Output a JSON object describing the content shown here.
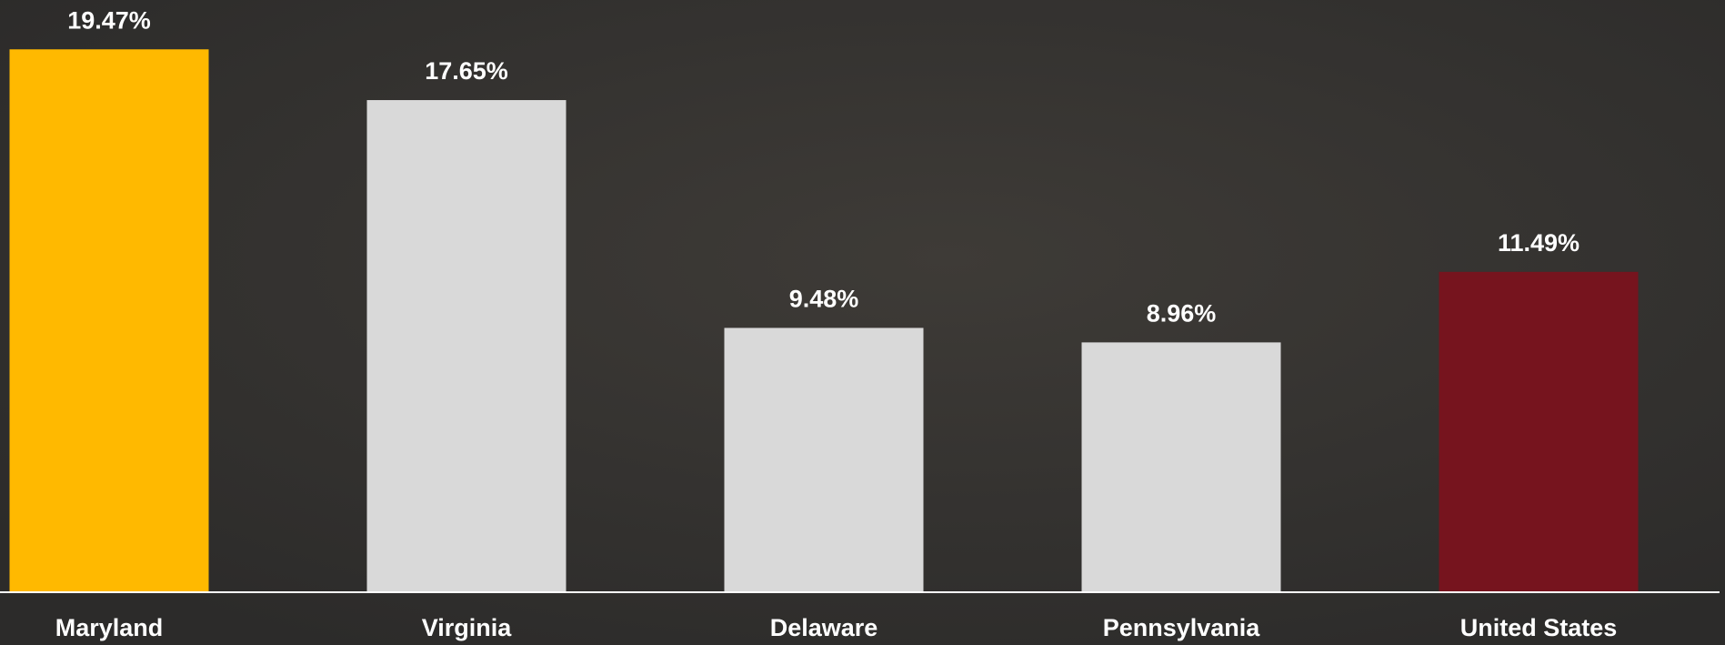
{
  "chart_data": {
    "type": "bar",
    "categories": [
      "Maryland",
      "Virginia",
      "Delaware",
      "Pennsylvania",
      "United States"
    ],
    "values": [
      19.47,
      17.65,
      9.48,
      8.96,
      11.49
    ],
    "value_labels": [
      "19.47%",
      "17.65%",
      "9.48%",
      "8.96%",
      "11.49%"
    ],
    "colors": [
      "#ffb900",
      "#d9d9d9",
      "#d9d9d9",
      "#d9d9d9",
      "#76141e"
    ],
    "ylim": [
      0,
      20
    ]
  }
}
